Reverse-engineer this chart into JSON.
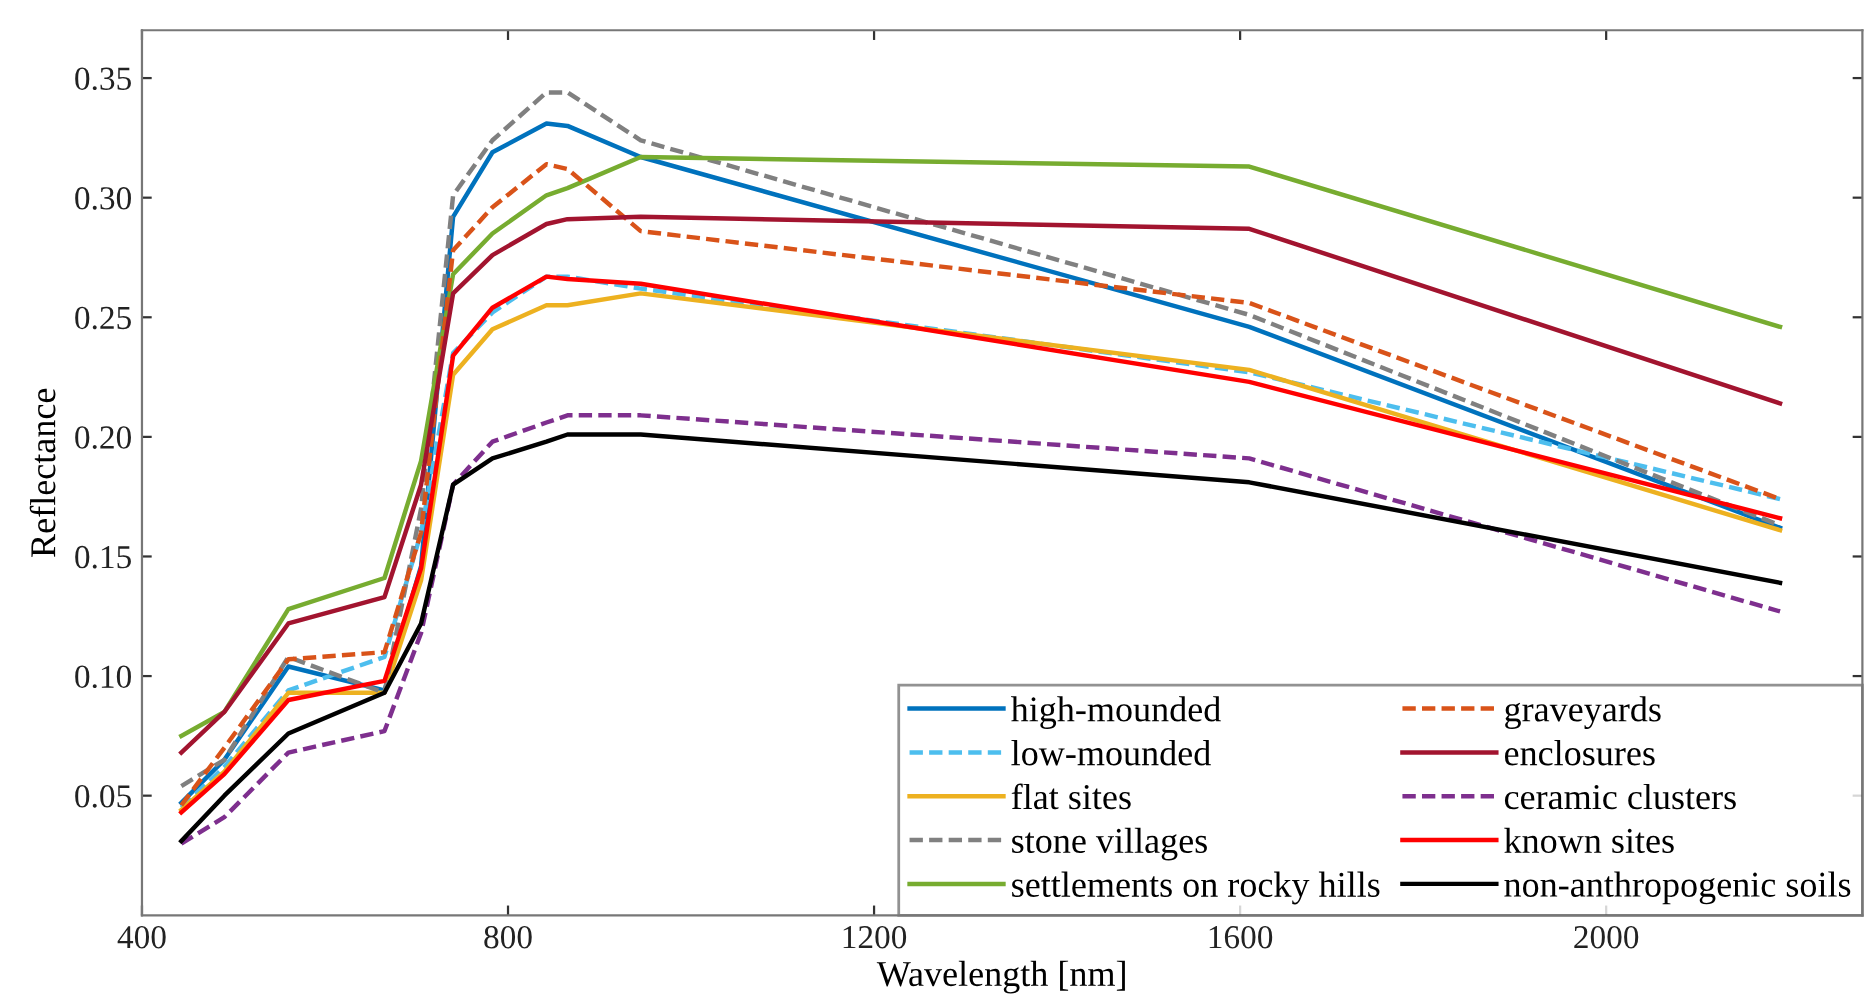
{
  "chart_data": {
    "type": "line",
    "xlabel": "Wavelength [nm]",
    "ylabel": "Reflectance",
    "x": [
      443,
      490,
      560,
      665,
      705,
      740,
      783,
      842,
      865,
      945,
      1610,
      2190
    ],
    "xlim": [
      400,
      2280
    ],
    "xticks": [
      400,
      800,
      1200,
      1600,
      2000
    ],
    "ylim": [
      0,
      0.37
    ],
    "yticks": [
      {
        "value": 0.05,
        "label": "0.05"
      },
      {
        "value": 0.1,
        "label": "0.10"
      },
      {
        "value": 0.15,
        "label": "0.15"
      },
      {
        "value": 0.2,
        "label": "0.20"
      },
      {
        "value": 0.25,
        "label": "0.25"
      },
      {
        "value": 0.3,
        "label": "0.30"
      },
      {
        "value": 0.35,
        "label": "0.35"
      }
    ],
    "grid": false,
    "legend": "bottom right",
    "marker": "none",
    "series": [
      {
        "name": "high-mounded",
        "color": "#0072bd",
        "line_style": "solid",
        "values": [
          0.047,
          0.065,
          0.104,
          0.094,
          0.146,
          0.292,
          0.319,
          0.331,
          0.33,
          0.317,
          0.246,
          0.162
        ]
      },
      {
        "name": "low-mounded",
        "color": "#4dbeee",
        "line_style": "dashed",
        "values": [
          0.045,
          0.062,
          0.094,
          0.108,
          0.16,
          0.235,
          0.252,
          0.267,
          0.267,
          0.262,
          0.227,
          0.174
        ]
      },
      {
        "name": "flat sites",
        "color": "#edb120",
        "line_style": "solid",
        "values": [
          0.044,
          0.06,
          0.093,
          0.093,
          0.14,
          0.226,
          0.245,
          0.255,
          0.255,
          0.26,
          0.228,
          0.161
        ]
      },
      {
        "name": "stone villages",
        "color": "#808080",
        "line_style": "dashed",
        "values": [
          0.054,
          0.065,
          0.108,
          0.093,
          0.17,
          0.301,
          0.324,
          0.344,
          0.344,
          0.324,
          0.251,
          0.163
        ]
      },
      {
        "name": "settlements on rocky hills",
        "color": "#77ac30",
        "line_style": "solid",
        "values": [
          0.075,
          0.085,
          0.128,
          0.141,
          0.19,
          0.268,
          0.285,
          0.301,
          0.304,
          0.317,
          0.313,
          0.246
        ]
      },
      {
        "name": "graveyards",
        "color": "#d95319",
        "line_style": "dashed",
        "values": [
          0.046,
          0.07,
          0.107,
          0.11,
          0.16,
          0.278,
          0.296,
          0.314,
          0.312,
          0.286,
          0.256,
          0.174
        ]
      },
      {
        "name": "enclosures",
        "color": "#a2142f",
        "line_style": "solid",
        "values": [
          0.068,
          0.085,
          0.122,
          0.133,
          0.18,
          0.26,
          0.276,
          0.289,
          0.291,
          0.292,
          0.287,
          0.214
        ]
      },
      {
        "name": "ceramic clusters",
        "color": "#7e2f8e",
        "line_style": "dashed",
        "values": [
          0.03,
          0.041,
          0.068,
          0.077,
          0.118,
          0.18,
          0.198,
          0.206,
          0.209,
          0.209,
          0.191,
          0.127
        ]
      },
      {
        "name": "known sites",
        "color": "#ff0000",
        "line_style": "solid",
        "values": [
          0.043,
          0.059,
          0.09,
          0.098,
          0.145,
          0.234,
          0.254,
          0.267,
          0.266,
          0.264,
          0.223,
          0.166
        ]
      },
      {
        "name": "non-anthropogenic soils",
        "color": "#000000",
        "line_style": "solid",
        "values": [
          0.031,
          0.05,
          0.076,
          0.093,
          0.122,
          0.18,
          0.191,
          0.198,
          0.201,
          0.201,
          0.181,
          0.139
        ]
      }
    ]
  }
}
